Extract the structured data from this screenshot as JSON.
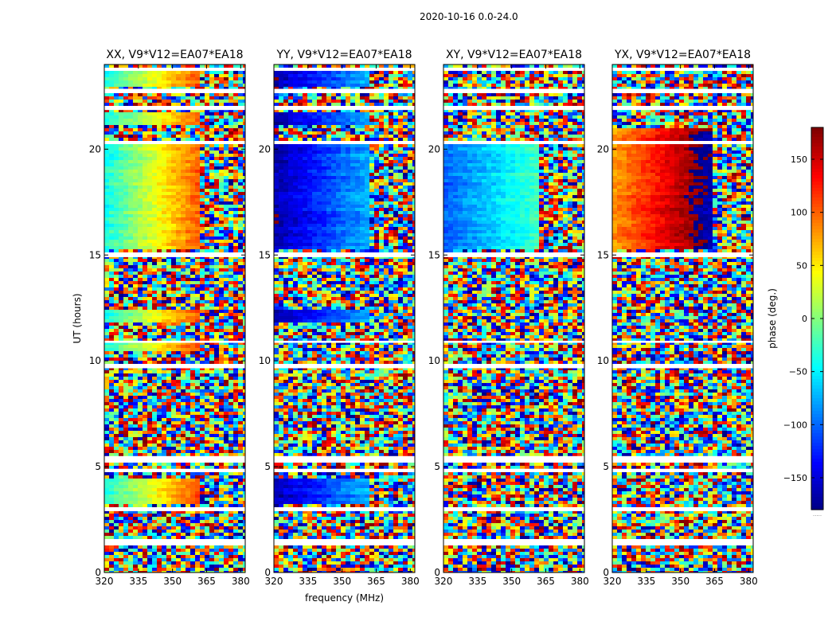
{
  "figure_title": "2020-10-16 0.0-24.0",
  "colorbar": {
    "label": "phase (deg.)",
    "ticks": [
      150,
      100,
      50,
      0,
      -50,
      -100,
      -150
    ],
    "tick_labels": [
      "150",
      "100",
      "50",
      "0",
      "−50",
      "−100",
      "−150"
    ],
    "range": [
      -180,
      180
    ],
    "colormap": "jet",
    "below_mark": "....."
  },
  "chart_data": [
    {
      "type": "heatmap",
      "title": "XX, V9*V12=EA07*EA18",
      "pol": "XX",
      "xlabel": "",
      "ylabel": "UT (hours)",
      "x_ticks": [
        320,
        335,
        350,
        365,
        380
      ],
      "x_tick_labels": [
        "320",
        "335",
        "350",
        "365",
        "380"
      ],
      "y_ticks": [
        0,
        5,
        10,
        15,
        20
      ],
      "y_tick_labels": [
        "0",
        "5",
        "10",
        "15",
        "20"
      ],
      "xlim": [
        320,
        382
      ],
      "ylim": [
        0,
        24
      ],
      "z_label": "phase (deg.)",
      "coherent_bands_ut": [
        [
          15.2,
          20.2
        ],
        [
          21.2,
          21.8
        ],
        [
          23.0,
          23.8
        ],
        [
          11.8,
          12.4
        ],
        [
          10.4,
          10.9
        ],
        [
          3.2,
          4.4
        ]
      ],
      "phase_gradient_deg": [
        -40,
        110
      ],
      "noisy_above_mhz": 363
    },
    {
      "type": "heatmap",
      "title": "YY, V9*V12=EA07*EA18",
      "pol": "YY",
      "xlabel": "frequency (MHz)",
      "ylabel": "",
      "x_ticks": [
        320,
        335,
        350,
        365,
        380
      ],
      "x_tick_labels": [
        "320",
        "335",
        "350",
        "365",
        "380"
      ],
      "y_ticks": [
        0,
        5,
        10,
        15,
        20
      ],
      "y_tick_labels": [
        "0",
        "5",
        "10",
        "15",
        "20"
      ],
      "xlim": [
        320,
        382
      ],
      "ylim": [
        0,
        24
      ],
      "z_label": "phase (deg.)",
      "coherent_bands_ut": [
        [
          15.2,
          20.2
        ],
        [
          21.2,
          21.8
        ],
        [
          23.0,
          23.8
        ],
        [
          11.8,
          12.4
        ],
        [
          3.2,
          4.4
        ]
      ],
      "phase_gradient_deg": [
        -165,
        -70
      ],
      "noisy_above_mhz": 362
    },
    {
      "type": "heatmap",
      "title": "XY, V9*V12=EA07*EA18",
      "pol": "XY",
      "xlabel": "",
      "ylabel": "",
      "x_ticks": [
        320,
        335,
        350,
        365,
        380
      ],
      "x_tick_labels": [
        "320",
        "335",
        "350",
        "365",
        "380"
      ],
      "y_ticks": [
        0,
        5,
        10,
        15,
        20
      ],
      "y_tick_labels": [
        "0",
        "5",
        "10",
        "15",
        "20"
      ],
      "xlim": [
        320,
        382
      ],
      "ylim": [
        0,
        24
      ],
      "z_label": "phase (deg.)",
      "coherent_bands_ut": [
        [
          15.2,
          20.2
        ]
      ],
      "phase_gradient_deg": [
        -100,
        -20
      ],
      "noisy_above_mhz": 362
    },
    {
      "type": "heatmap",
      "title": "YX, V9*V12=EA07*EA18",
      "pol": "YX",
      "xlabel": "",
      "ylabel": "",
      "x_ticks": [
        320,
        335,
        350,
        365,
        380
      ],
      "x_tick_labels": [
        "320",
        "335",
        "350",
        "365",
        "380"
      ],
      "y_ticks": [
        0,
        5,
        10,
        15,
        20
      ],
      "y_tick_labels": [
        "0",
        "5",
        "10",
        "15",
        "20"
      ],
      "xlim": [
        320,
        382
      ],
      "ylim": [
        0,
        24
      ],
      "z_label": "phase (deg.)",
      "coherent_bands_ut": [
        [
          15.2,
          20.2
        ],
        [
          20.3,
          21.0
        ]
      ],
      "phase_gradient_deg": [
        80,
        200
      ],
      "noisy_above_mhz": 365
    }
  ]
}
